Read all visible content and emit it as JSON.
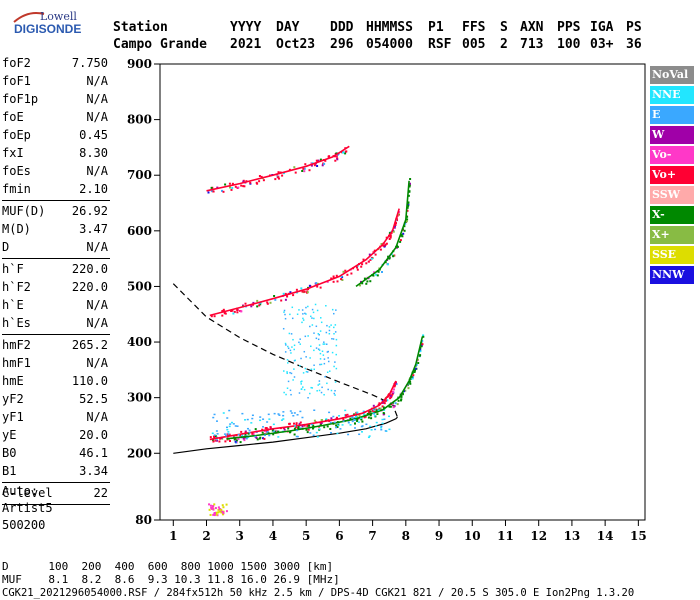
{
  "logo": {
    "brand": "Lowell",
    "name": "DIGISONDE"
  },
  "header": {
    "row1": [
      {
        "label": "Station",
        "x": 113
      },
      {
        "label": "YYYY",
        "x": 230
      },
      {
        "label": "DAY",
        "x": 276
      },
      {
        "label": "DDD",
        "x": 330
      },
      {
        "label": "HHMMSS",
        "x": 366
      },
      {
        "label": "P1",
        "x": 428
      },
      {
        "label": "FFS",
        "x": 462
      },
      {
        "label": "S",
        "x": 500
      },
      {
        "label": "AXN",
        "x": 520
      },
      {
        "label": "PPS",
        "x": 557
      },
      {
        "label": "IGA",
        "x": 590
      },
      {
        "label": "PS",
        "x": 626
      }
    ],
    "row2": [
      {
        "label": "Campo Grande",
        "x": 113
      },
      {
        "label": "2021",
        "x": 230
      },
      {
        "label": "Oct23",
        "x": 276
      },
      {
        "label": "296",
        "x": 330
      },
      {
        "label": "054000",
        "x": 366
      },
      {
        "label": "RSF",
        "x": 428
      },
      {
        "label": "005",
        "x": 462
      },
      {
        "label": "2",
        "x": 500
      },
      {
        "label": "713",
        "x": 520
      },
      {
        "label": "100",
        "x": 557
      },
      {
        "label": "03+",
        "x": 590
      },
      {
        "label": "36",
        "x": 626
      }
    ]
  },
  "params": [
    {
      "k": "foF2",
      "v": "7.750"
    },
    {
      "k": "foF1",
      "v": "N/A"
    },
    {
      "k": "foF1p",
      "v": "N/A"
    },
    {
      "k": "foE",
      "v": "N/A"
    },
    {
      "k": "foEp",
      "v": "0.45"
    },
    {
      "k": "fxI",
      "v": "8.30"
    },
    {
      "k": "foEs",
      "v": "N/A"
    },
    {
      "k": "fmin",
      "v": "2.10"
    },
    {
      "sep": true
    },
    {
      "k": "MUF(D)",
      "v": "26.92"
    },
    {
      "k": "M(D)",
      "v": "3.47"
    },
    {
      "k": "D",
      "v": "N/A"
    },
    {
      "sep": true
    },
    {
      "k": "h`F",
      "v": "220.0"
    },
    {
      "k": "h`F2",
      "v": "220.0"
    },
    {
      "k": "h`E",
      "v": "N/A"
    },
    {
      "k": "h`Es",
      "v": "N/A"
    },
    {
      "sep": true
    },
    {
      "k": "hmF2",
      "v": "265.2"
    },
    {
      "k": "hmF1",
      "v": "N/A"
    },
    {
      "k": "hmE",
      "v": "110.0"
    },
    {
      "k": "yF2",
      "v": "52.5"
    },
    {
      "k": "yF1",
      "v": "N/A"
    },
    {
      "k": "yE",
      "v": "20.0"
    },
    {
      "k": "B0",
      "v": "46.1"
    },
    {
      "k": "B1",
      "v": "3.34"
    },
    {
      "sep": true
    },
    {
      "k": "C-level",
      "v": "22"
    },
    {
      "sep": true
    }
  ],
  "auto": [
    "Auto:",
    "Artist5",
    "500200"
  ],
  "legend": [
    {
      "label": "NoVal",
      "color": "#8c8c8c"
    },
    {
      "label": "NNE",
      "color": "#22e6ff"
    },
    {
      "label": "E",
      "color": "#3aa8ff"
    },
    {
      "label": "W",
      "color": "#a000a8"
    },
    {
      "label": "Vo-",
      "color": "#ff38c8"
    },
    {
      "label": "Vo+",
      "color": "#ff0033"
    },
    {
      "label": "SSW",
      "color": "#ffaaaa"
    },
    {
      "label": "X-",
      "color": "#008800"
    },
    {
      "label": "X+",
      "color": "#88bb44"
    },
    {
      "label": "SSE",
      "color": "#dddd00"
    },
    {
      "label": "NNW",
      "color": "#1a10e0"
    }
  ],
  "bottom": {
    "line1": "D      100  200  400  600  800 1000 1500 3000 [km]",
    "line2": "MUF    8.1  8.2  8.6  9.3 10.3 11.8 16.0 26.9 [MHz]",
    "line3": "CGK21_2021296054000.RSF / 284fx512h 50 kHz 2.5 km / DPS-4D CGK21 821 / 20.5 S 305.0 E Ion2Png 1.3.20"
  },
  "chart_data": {
    "type": "scatter",
    "xlim": [
      0.6,
      15.2
    ],
    "ylim": [
      80,
      900
    ],
    "xticks": [
      1,
      2,
      3,
      4,
      5,
      6,
      7,
      8,
      9,
      10,
      11,
      12,
      13,
      14,
      15
    ],
    "yticks": [
      80,
      200,
      300,
      400,
      500,
      600,
      700,
      800,
      900
    ],
    "xlabel": "",
    "ylabel": "",
    "traces": [
      {
        "name": "o-trace",
        "color": "#ff0033",
        "x": [
          2.1,
          2.6,
          3.2,
          4.0,
          5.0,
          6.0,
          6.7,
          7.2,
          7.5,
          7.7
        ],
        "y": [
          225,
          230,
          236,
          244,
          252,
          262,
          272,
          286,
          305,
          330
        ]
      },
      {
        "name": "x-trace",
        "color": "#008800",
        "x": [
          2.6,
          3.5,
          4.5,
          5.5,
          6.5,
          7.3,
          7.8,
          8.1,
          8.3,
          8.5
        ],
        "y": [
          226,
          232,
          240,
          250,
          262,
          278,
          300,
          330,
          360,
          410
        ]
      },
      {
        "name": "o-2hop",
        "color": "#ff0033",
        "x": [
          2.1,
          3.0,
          4.0,
          5.0,
          6.0,
          6.8,
          7.3,
          7.6,
          7.8
        ],
        "y": [
          448,
          462,
          478,
          495,
          518,
          548,
          575,
          600,
          640
        ]
      },
      {
        "name": "x-2hop",
        "color": "#008800",
        "x": [
          6.5,
          7.2,
          7.7,
          8.0,
          8.1
        ],
        "y": [
          500,
          530,
          570,
          620,
          690
        ]
      },
      {
        "name": "3hop",
        "color": "#ff0033",
        "x": [
          2.0,
          3.0,
          4.0,
          5.0,
          5.8,
          6.3
        ],
        "y": [
          672,
          685,
          700,
          716,
          733,
          752
        ]
      }
    ],
    "profile_solid": {
      "x": [
        1.0,
        2.0,
        3.0,
        4.0,
        5.0,
        6.0,
        6.8,
        7.4,
        7.7,
        7.75
      ],
      "y": [
        200,
        208,
        214,
        220,
        228,
        236,
        244,
        254,
        262,
        265
      ]
    },
    "profile_dashed": {
      "x": [
        1.0,
        2.0,
        3.0,
        4.0,
        5.0,
        6.0,
        7.0,
        7.6,
        7.75
      ],
      "y": [
        505,
        445,
        408,
        378,
        352,
        328,
        305,
        288,
        265
      ]
    }
  }
}
